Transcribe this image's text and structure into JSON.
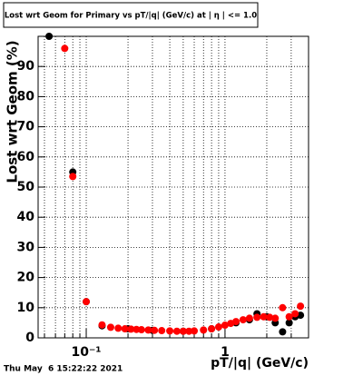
{
  "chart_data": {
    "type": "scatter",
    "title": "Lost wrt Geom for Primary vs pT/|q| (GeV/c) at | η | <= 1.0",
    "x_label": "pT/|q| (GeV/c)",
    "y_label": "Lost wrt Geom (%)",
    "timestamp": "Thu May  6 15:22:22 2021",
    "log_x": true,
    "grid": true,
    "xlim": [
      0.045,
      4
    ],
    "ylim": [
      0,
      100
    ],
    "xticks": [
      {
        "value": 0.1,
        "label": "10⁻¹"
      },
      1
    ],
    "xminor_ticks": [
      0.05,
      0.06,
      0.07,
      0.08,
      0.09,
      0.2,
      0.3,
      0.4,
      0.5,
      0.6,
      0.7,
      0.8,
      0.9,
      2,
      3,
      4
    ],
    "yticks": [
      0,
      10,
      20,
      30,
      40,
      50,
      60,
      70,
      80,
      90
    ],
    "series": [
      {
        "color": "#000000",
        "x": [
          0.054,
          0.08,
          0.1,
          0.13,
          0.2,
          0.3,
          0.5,
          0.8,
          1.2,
          1.5,
          1.7,
          2.0,
          2.3,
          2.6,
          2.9,
          3.2,
          3.5
        ],
        "values": [
          100,
          55,
          12,
          4,
          3,
          2.5,
          2.2,
          3,
          5,
          6,
          8,
          7,
          5,
          2,
          5,
          7,
          7.5
        ]
      },
      {
        "color": "#ff0000",
        "x": [
          0.07,
          0.08,
          0.1,
          0.13,
          0.15,
          0.17,
          0.19,
          0.21,
          0.23,
          0.25,
          0.28,
          0.31,
          0.35,
          0.4,
          0.45,
          0.5,
          0.55,
          0.6,
          0.7,
          0.8,
          0.9,
          1.0,
          1.1,
          1.2,
          1.35,
          1.5,
          1.7,
          1.9,
          2.1,
          2.3,
          2.6,
          2.9,
          3.2,
          3.5
        ],
        "values": [
          96,
          53.5,
          12,
          4.3,
          3.5,
          3.2,
          3,
          2.9,
          2.8,
          2.7,
          2.6,
          2.5,
          2.4,
          2.3,
          2.2,
          2.2,
          2.2,
          2.3,
          2.6,
          3,
          3.6,
          4.2,
          4.8,
          5.4,
          6,
          6.5,
          6.8,
          7,
          6.8,
          6.5,
          10,
          7,
          8,
          10.5
        ]
      }
    ]
  }
}
